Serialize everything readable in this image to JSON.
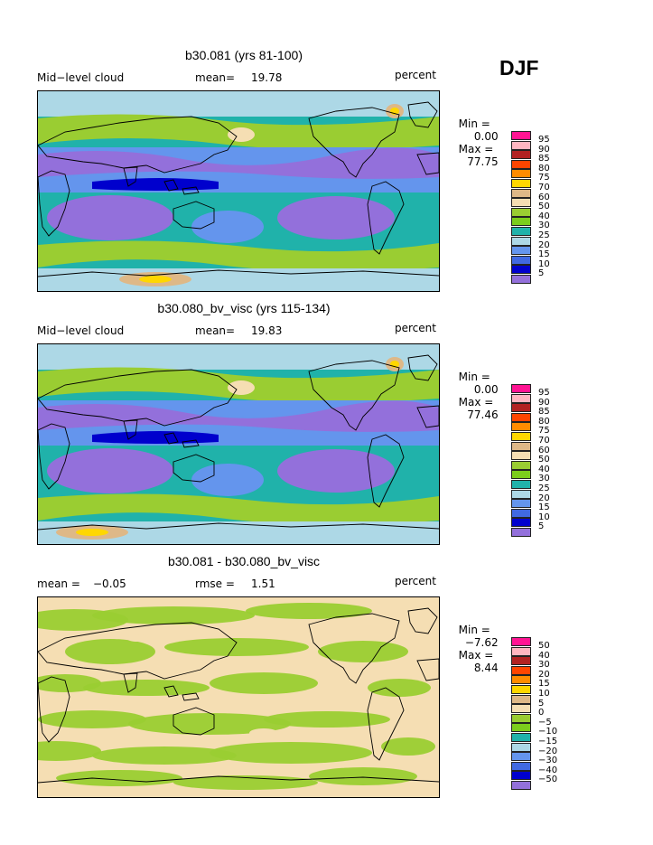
{
  "season": "DJF",
  "panels": [
    {
      "title": "b30.081 (yrs 81-100)",
      "left_label": "Mid−level cloud",
      "mean_label": "mean=",
      "mean_value": "19.78",
      "units": "percent",
      "min_label": "Min =",
      "min_value": "0.00",
      "max_label": "Max =",
      "max_value": "77.75",
      "variant": "a",
      "legend": {
        "labels": [
          "95",
          "90",
          "85",
          "80",
          "75",
          "70",
          "60",
          "50",
          "40",
          "30",
          "25",
          "20",
          "15",
          "10",
          "5"
        ],
        "colors": [
          "#ff1493",
          "#ffb6c1",
          "#b22222",
          "#ff4500",
          "#ff8c00",
          "#ffd700",
          "#deb887",
          "#f5deb3",
          "#9acd32",
          "#7ccd1c",
          "#20b2aa",
          "#add8e6",
          "#6495ed",
          "#4169e1",
          "#0000cd",
          "#9370db"
        ]
      }
    },
    {
      "title": "b30.080_bv_visc (yrs 115-134)",
      "left_label": "Mid−level cloud",
      "mean_label": "mean=",
      "mean_value": "19.83",
      "units": "percent",
      "min_label": "Min =",
      "min_value": "0.00",
      "max_label": "Max =",
      "max_value": "77.46",
      "variant": "b",
      "legend": {
        "labels": [
          "95",
          "90",
          "85",
          "80",
          "75",
          "70",
          "60",
          "50",
          "40",
          "30",
          "25",
          "20",
          "15",
          "10",
          "5"
        ],
        "colors": [
          "#ff1493",
          "#ffb6c1",
          "#b22222",
          "#ff4500",
          "#ff8c00",
          "#ffd700",
          "#deb887",
          "#f5deb3",
          "#9acd32",
          "#7ccd1c",
          "#20b2aa",
          "#add8e6",
          "#6495ed",
          "#4169e1",
          "#0000cd",
          "#9370db"
        ]
      }
    },
    {
      "title": "b30.081 - b30.080_bv_visc",
      "left_label": "mean =",
      "left_value": "−0.05",
      "mean_label": "rmse =",
      "mean_value": "1.51",
      "units": "percent",
      "min_label": "Min =",
      "min_value": "−7.62",
      "max_label": "Max =",
      "max_value": "8.44",
      "variant": "diff",
      "legend": {
        "labels": [
          "50",
          "40",
          "30",
          "20",
          "15",
          "10",
          "5",
          "0",
          "−5",
          "−10",
          "−15",
          "−20",
          "−30",
          "−40",
          "−50"
        ],
        "colors": [
          "#ff1493",
          "#ffb6c1",
          "#b22222",
          "#ff4500",
          "#ff8c00",
          "#ffd700",
          "#deb887",
          "#f5deb3",
          "#9acd32",
          "#7ccd1c",
          "#20b2aa",
          "#add8e6",
          "#6495ed",
          "#4169e1",
          "#0000cd",
          "#9370db"
        ]
      }
    }
  ]
}
